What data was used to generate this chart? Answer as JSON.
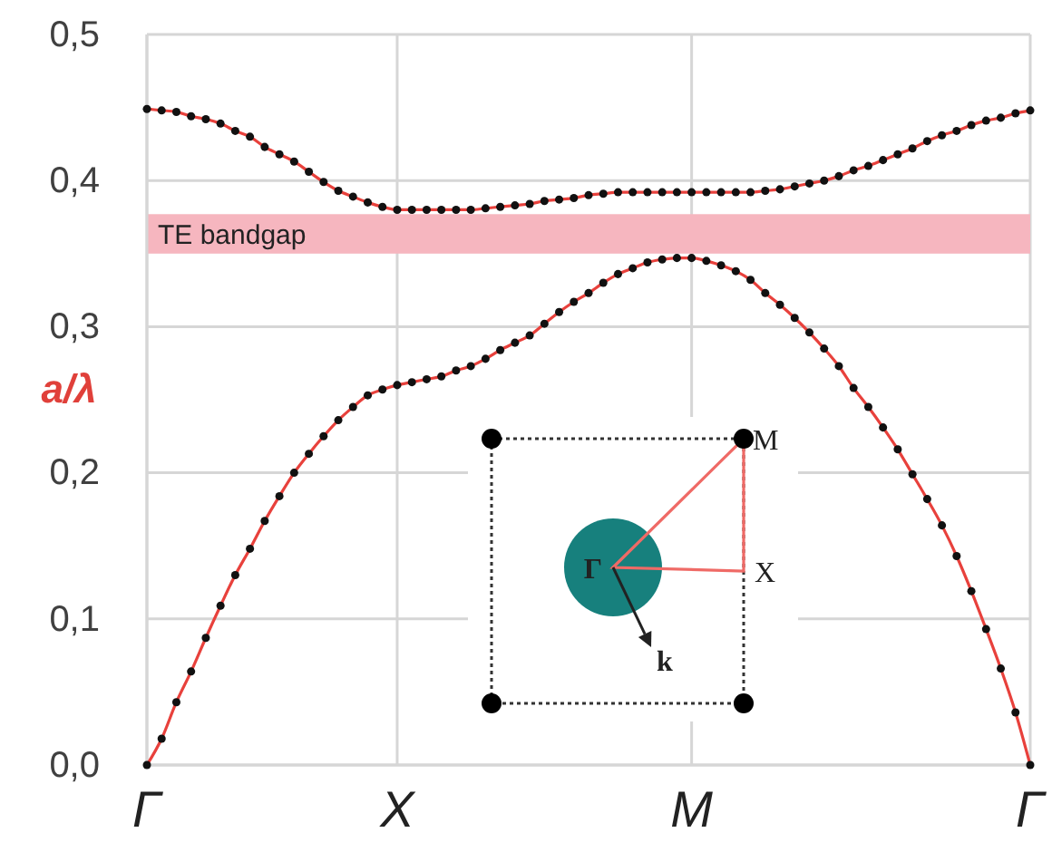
{
  "chart_data": {
    "type": "line",
    "ylabel": "a/λ",
    "categories": [
      "Γ",
      null,
      null,
      null,
      null,
      null,
      null,
      null,
      null,
      null,
      null,
      null,
      null,
      null,
      null,
      null,
      null,
      "X",
      null,
      null,
      null,
      null,
      null,
      null,
      null,
      null,
      null,
      null,
      null,
      null,
      null,
      null,
      null,
      null,
      null,
      null,
      null,
      "M",
      null,
      null,
      null,
      null,
      null,
      null,
      null,
      null,
      null,
      null,
      null,
      null,
      null,
      null,
      null,
      null,
      null,
      null,
      null,
      null,
      null,
      null,
      "Γ"
    ],
    "ylim": [
      0,
      0.5
    ],
    "yticks": [
      {
        "value": 0,
        "label": "0,0"
      },
      {
        "value": 0.1,
        "label": "0,1"
      },
      {
        "value": 0.2,
        "label": "0,2"
      },
      {
        "value": 0.3,
        "label": "0,3"
      },
      {
        "value": 0.4,
        "label": "0,4"
      },
      {
        "value": 0.5,
        "label": "0,5"
      }
    ],
    "grid": true,
    "marker": "circle",
    "bands": [
      {
        "axis": "y",
        "from": 0.35,
        "to": 0.377,
        "label": "TE bandgap",
        "color": "#f6b6bf"
      }
    ],
    "annotations": [
      "Γ",
      "M",
      "X",
      "k"
    ],
    "series": [
      {
        "color": "#e8413c",
        "values": [
          0.449,
          0.448,
          0.447,
          0.444,
          0.442,
          0.439,
          0.434,
          0.43,
          0.423,
          0.418,
          0.413,
          0.406,
          0.399,
          0.393,
          0.389,
          0.385,
          0.382,
          0.38,
          0.38,
          0.38,
          0.38,
          0.38,
          0.38,
          0.381,
          0.382,
          0.383,
          0.384,
          0.386,
          0.387,
          0.388,
          0.39,
          0.391,
          0.392,
          0.392,
          0.392,
          0.392,
          0.392,
          0.392,
          0.392,
          0.392,
          0.392,
          0.392,
          0.393,
          0.394,
          0.396,
          0.398,
          0.4,
          0.403,
          0.407,
          0.41,
          0.414,
          0.418,
          0.422,
          0.427,
          0.431,
          0.434,
          0.438,
          0.441,
          0.443,
          0.446,
          0.448
        ]
      },
      {
        "color": "#e8413c",
        "values": [
          0,
          0.018,
          0.043,
          0.064,
          0.087,
          0.109,
          0.13,
          0.148,
          0.167,
          0.184,
          0.2,
          0.213,
          0.225,
          0.236,
          0.245,
          0.253,
          0.257,
          0.26,
          0.262,
          0.264,
          0.266,
          0.27,
          0.273,
          0.278,
          0.284,
          0.289,
          0.294,
          0.302,
          0.31,
          0.317,
          0.323,
          0.33,
          0.336,
          0.34,
          0.344,
          0.346,
          0.347,
          0.347,
          0.345,
          0.342,
          0.338,
          0.332,
          0.323,
          0.315,
          0.306,
          0.296,
          0.285,
          0.273,
          0.258,
          0.245,
          0.231,
          0.216,
          0.199,
          0.182,
          0.164,
          0.143,
          0.119,
          0.093,
          0.066,
          0.036,
          0
        ]
      }
    ]
  }
}
